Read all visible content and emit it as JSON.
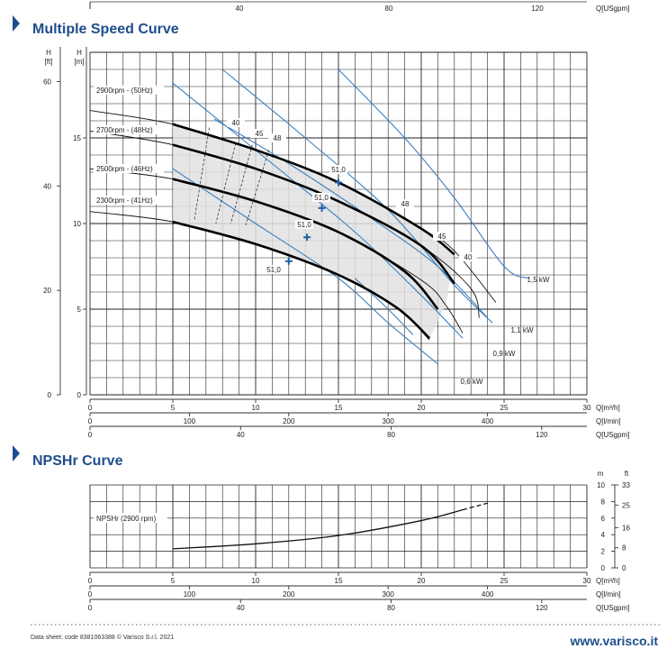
{
  "header": {
    "top_axis": {
      "ticks": [
        "40",
        "80",
        "120"
      ],
      "unit": "Q[USgpm]"
    }
  },
  "sections": {
    "multi_title": "Multiple Speed Curve",
    "npsh_title": "NPSHr Curve"
  },
  "footer": {
    "datasheet": "Data sheet: code 8381063388 © Varisco S.r.l. 2021",
    "website": "www.varisco.it"
  },
  "chart_data": [
    {
      "type": "line",
      "name_id": "multiple-speed-curve",
      "y_units": {
        "ft": "H [ft]",
        "m": "H [m]"
      },
      "x_axes": [
        {
          "unit": "Q[m³/h]",
          "ticks": [
            "0",
            "5",
            "10",
            "15",
            "20",
            "25",
            "30"
          ],
          "range": [
            0,
            30
          ]
        },
        {
          "unit": "Q[l/min]",
          "ticks": [
            "0",
            "100",
            "200",
            "300",
            "400"
          ],
          "range": [
            0,
            500
          ]
        },
        {
          "unit": "Q[USgpm]",
          "ticks": [
            "0",
            "40",
            "80",
            "120"
          ],
          "range": [
            0,
            132
          ]
        }
      ],
      "y_axes": [
        {
          "unit": "ft",
          "ticks": [
            "0",
            "20",
            "40",
            "60"
          ],
          "range": [
            0,
            65.6
          ]
        },
        {
          "unit": "m",
          "ticks": [
            "0",
            "5",
            "10",
            "15"
          ],
          "range": [
            0,
            20
          ]
        }
      ],
      "grid": true,
      "series": [
        {
          "name": "2900rpm - (50Hz)",
          "x": [
            0,
            5,
            10,
            15,
            20,
            22,
            24.5
          ],
          "y": [
            16.6,
            15.8,
            14.3,
            12.4,
            9.7,
            8.4,
            5.4
          ]
        },
        {
          "name": "2700rpm - (48Hz)",
          "x": [
            0,
            5,
            10,
            15,
            20,
            23,
            23.5
          ],
          "y": [
            15.4,
            14.6,
            13.2,
            11.3,
            8.7,
            6.2,
            4.5
          ]
        },
        {
          "name": "2500rpm - (46Hz)",
          "x": [
            0,
            5,
            10,
            15,
            20,
            21.5,
            22.5
          ],
          "y": [
            13.2,
            12.6,
            11.3,
            9.5,
            6.7,
            5.2,
            3.6
          ]
        },
        {
          "name": "2300rpm - (41Hz)",
          "x": [
            0,
            5,
            10,
            15,
            18.5,
            20.5
          ],
          "y": [
            10.7,
            10.1,
            8.8,
            7.0,
            5.1,
            3.2
          ]
        }
      ],
      "efficiency_labels": [
        "40",
        "45",
        "48",
        "51,0",
        "51,0",
        "51,0",
        "51,0",
        "48",
        "45",
        "40"
      ],
      "power_labels": [
        "1,5 kW",
        "1,1 kW",
        "0,9 kW",
        "0,6 kW"
      ]
    },
    {
      "type": "line",
      "name_id": "npshr-curve",
      "y_units": {
        "m": "m",
        "ft": "ft"
      },
      "x_axes": [
        {
          "unit": "Q[m³/h]",
          "ticks": [
            "0",
            "5",
            "10",
            "15",
            "20",
            "25",
            "30"
          ],
          "range": [
            0,
            30
          ]
        },
        {
          "unit": "Q[l/min]",
          "ticks": [
            "0",
            "100",
            "200",
            "300",
            "400"
          ],
          "range": [
            0,
            500
          ]
        },
        {
          "unit": "Q[USgpm]",
          "ticks": [
            "0",
            "40",
            "80",
            "120"
          ],
          "range": [
            0,
            132
          ]
        }
      ],
      "y_axes": [
        {
          "unit": "m",
          "ticks": [
            "0",
            "2",
            "4",
            "6",
            "8",
            "10"
          ],
          "range": [
            0,
            10
          ]
        },
        {
          "unit": "ft",
          "ticks": [
            "0",
            "8",
            "16",
            "25",
            "33"
          ],
          "range": [
            0,
            33
          ]
        }
      ],
      "grid": true,
      "series": [
        {
          "name": "NPSHr (2900 rpm)",
          "x": [
            5,
            10,
            15,
            20,
            22.5,
            24
          ],
          "y": [
            2.3,
            2.9,
            3.9,
            5.7,
            7.0,
            7.8
          ]
        }
      ]
    }
  ]
}
